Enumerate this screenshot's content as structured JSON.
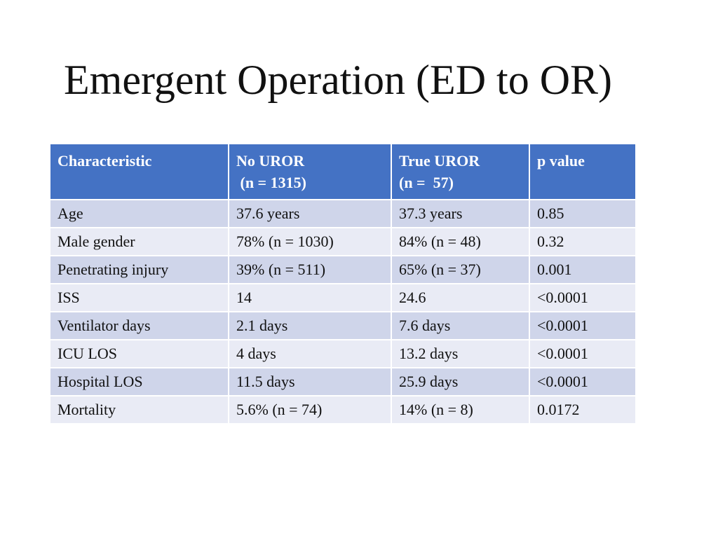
{
  "slide": {
    "title": "Emergent Operation (ED to OR)"
  },
  "table": {
    "headers": [
      {
        "line1": "Characteristic",
        "line2": ""
      },
      {
        "line1": "No UROR",
        "line2": " (n = 1315)"
      },
      {
        "line1": "True UROR",
        "line2": "(n =  57)"
      },
      {
        "line1": "p value",
        "line2": ""
      }
    ],
    "rows": [
      [
        "Age",
        "37.6 years",
        "37.3 years",
        "0.85"
      ],
      [
        "Male gender",
        "78% (n = 1030)",
        "84% (n = 48)",
        "0.32"
      ],
      [
        "Penetrating injury",
        "39% (n = 511)",
        "65% (n = 37)",
        "0.001"
      ],
      [
        "ISS",
        "14",
        "24.6",
        "<0.0001"
      ],
      [
        "Ventilator days",
        "2.1 days",
        "7.6 days",
        "<0.0001"
      ],
      [
        "ICU LOS",
        "4 days",
        "13.2 days",
        "<0.0001"
      ],
      [
        "Hospital LOS",
        "11.5 days",
        "25.9 days",
        "<0.0001"
      ],
      [
        "Mortality",
        "5.6% (n = 74)",
        "14% (n = 8)",
        "0.0172"
      ]
    ],
    "colors": {
      "header_bg": "#4472c4",
      "row_odd_bg": "#cfd5ea",
      "row_even_bg": "#e9ebf5"
    }
  }
}
